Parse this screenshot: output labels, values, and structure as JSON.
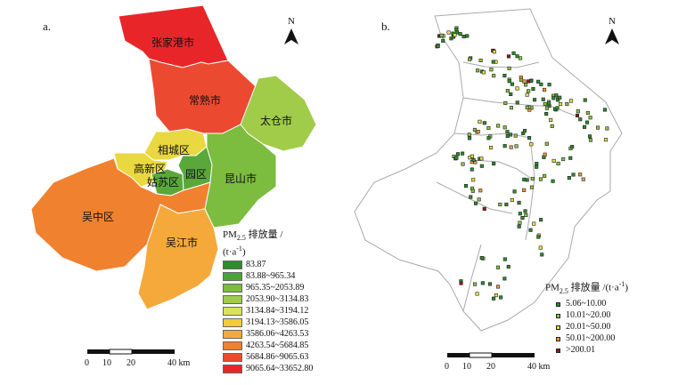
{
  "panel_a": {
    "label": "a.",
    "north": "N",
    "regions": [
      {
        "name": "张家港市",
        "color": "#e8262a"
      },
      {
        "name": "常熟市",
        "color": "#ec4a30"
      },
      {
        "name": "太仓市",
        "color": "#a0cc4a"
      },
      {
        "name": "相城区",
        "color": "#e9d840"
      },
      {
        "name": "高新区",
        "color": "#e9d840"
      },
      {
        "name": "姑苏区",
        "color": "#5aa83a"
      },
      {
        "name": "园区",
        "color": "#5aa83a"
      },
      {
        "name": "昆山市",
        "color": "#7cbc3e"
      },
      {
        "name": "吴中区",
        "color": "#f0812f"
      },
      {
        "name": "吴江市",
        "color": "#f5a93a"
      }
    ],
    "legend_title_1": "PM",
    "legend_title_sub": "2.5",
    "legend_title_2": " 排放量 /",
    "legend_title_3": "(t·a",
    "legend_title_sup": "-1",
    "legend_title_4": ")",
    "legend": [
      {
        "label": "83.87",
        "color": "#2e8b2e"
      },
      {
        "label": "83.88~965.34",
        "color": "#4ca23a"
      },
      {
        "label": "965.35~2053.89",
        "color": "#7cbc3e"
      },
      {
        "label": "2053.90~3134.83",
        "color": "#a0cc4a"
      },
      {
        "label": "3134.84~3194.12",
        "color": "#d9e35a"
      },
      {
        "label": "3194.13~3586.05",
        "color": "#f3cc3a"
      },
      {
        "label": "3586.06~4263.53",
        "color": "#f5a93a"
      },
      {
        "label": "4263.54~5684.85",
        "color": "#f0812f"
      },
      {
        "label": "5684.86~9065.63",
        "color": "#ec4a30"
      },
      {
        "label": "9065.64~33652.80",
        "color": "#e8262a"
      }
    ],
    "scale": {
      "ticks": [
        "0",
        "10",
        "20",
        "40 km"
      ]
    }
  },
  "panel_b": {
    "label": "b.",
    "north": "N",
    "legend_title_1": "PM",
    "legend_title_sub": "2.5",
    "legend_title_2": " 排放量 /(t·a",
    "legend_title_sup": "-1",
    "legend_title_3": ")",
    "legend": [
      {
        "label": "5.06~10.00",
        "color": "#2e8b2e"
      },
      {
        "label": "10.01~20.00",
        "color": "#8cc43c"
      },
      {
        "label": "20.01~50.00",
        "color": "#e6e04a"
      },
      {
        "label": "50.01~200.00",
        "color": "#f29a3a"
      },
      {
        "label": ">200.01",
        "color": "#8b1a1a"
      }
    ],
    "scale": {
      "ticks": [
        "0",
        "10",
        "20",
        "40 km"
      ]
    }
  }
}
